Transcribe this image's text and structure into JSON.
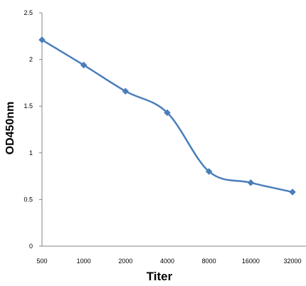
{
  "chart_data": {
    "type": "line",
    "title": "",
    "xlabel": "Titer",
    "ylabel": "OD450nm",
    "categories": [
      "500",
      "1000",
      "2000",
      "4000",
      "8000",
      "16000",
      "32000"
    ],
    "series": [
      {
        "values": [
          2.21,
          1.94,
          1.66,
          1.43,
          0.8,
          0.68,
          0.58
        ]
      }
    ],
    "ylim": [
      0,
      2.5
    ],
    "yticks": [
      "0",
      "0.5",
      "1",
      "1.5",
      "2",
      "2.5"
    ],
    "grid": false,
    "legend": "none",
    "line_color": "#4a7ebb",
    "marker": "diamond",
    "smooth": true
  }
}
